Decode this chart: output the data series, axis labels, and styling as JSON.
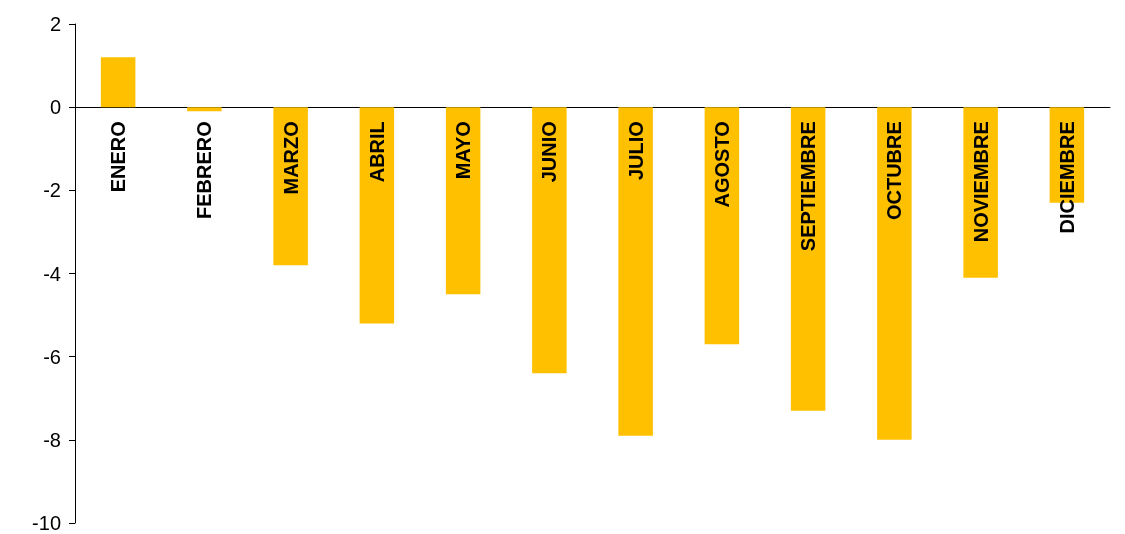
{
  "chart_data": {
    "type": "bar",
    "categories": [
      "ENERO",
      "FEBRERO",
      "MARZO",
      "ABRIL",
      "MAYO",
      "JUNIO",
      "JULIO",
      "AGOSTO",
      "SEPTIEMBRE",
      "OCTUBRE",
      "NOVIEMBRE",
      "DICIEMBRE"
    ],
    "values": [
      1.2,
      -0.1,
      -3.8,
      -5.2,
      -4.5,
      -6.4,
      -7.9,
      -5.7,
      -7.3,
      -8.0,
      -4.1,
      -2.3
    ],
    "color": "#ffc000",
    "ylim": [
      -10,
      2
    ],
    "yticks": [
      -10,
      -8,
      -6,
      -4,
      -2,
      0,
      2
    ]
  }
}
